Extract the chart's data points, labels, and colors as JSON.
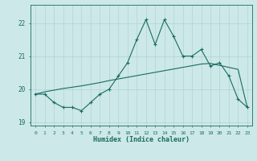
{
  "xlabel": "Humidex (Indice chaleur)",
  "ylabel": "",
  "bg_color": "#cce8e8",
  "line_color": "#1a6b60",
  "grid_color": "#aacfcf",
  "x_data": [
    0,
    1,
    2,
    3,
    4,
    5,
    6,
    7,
    8,
    9,
    10,
    11,
    12,
    13,
    14,
    15,
    16,
    17,
    18,
    19,
    20,
    21,
    22,
    23
  ],
  "y_main": [
    19.85,
    19.85,
    19.6,
    19.45,
    19.45,
    19.35,
    19.6,
    19.85,
    20.0,
    20.4,
    20.8,
    21.5,
    22.1,
    21.35,
    22.1,
    21.6,
    21.0,
    21.0,
    21.2,
    20.7,
    20.8,
    20.4,
    19.7,
    19.45
  ],
  "y_trend": [
    19.85,
    19.92,
    19.97,
    20.02,
    20.06,
    20.1,
    20.15,
    20.2,
    20.26,
    20.31,
    20.36,
    20.41,
    20.46,
    20.51,
    20.56,
    20.61,
    20.66,
    20.71,
    20.76,
    20.78,
    20.72,
    20.66,
    20.6,
    19.45
  ],
  "ylim": [
    18.9,
    22.55
  ],
  "xlim": [
    -0.5,
    23.5
  ],
  "yticks": [
    19,
    20,
    21,
    22
  ],
  "xticks": [
    0,
    1,
    2,
    3,
    4,
    5,
    6,
    7,
    8,
    9,
    10,
    11,
    12,
    13,
    14,
    15,
    16,
    17,
    18,
    19,
    20,
    21,
    22,
    23
  ]
}
